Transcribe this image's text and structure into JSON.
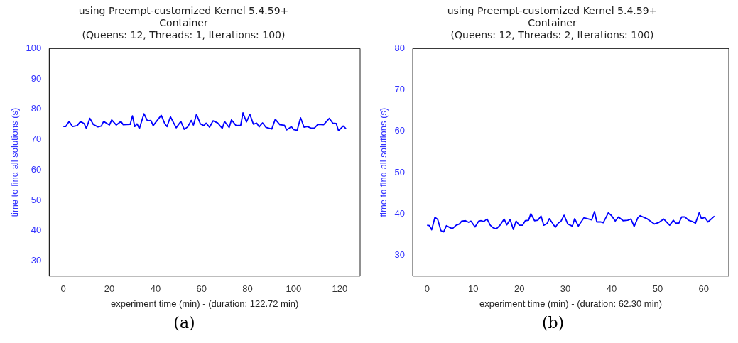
{
  "chart_data": [
    {
      "type": "line",
      "title": "using Preempt-customized Kernel 5.4.59+\nContainer\n(Queens: 12, Threads: 1, Iterations: 100)",
      "xlabel": "experiment time (min) - (duration: 122.72 min)",
      "ylabel": "time to find all solutions (s)",
      "annotations": [
        "(a)"
      ],
      "xlim": [
        -6.14,
        128.86
      ],
      "ylim": [
        25,
        100
      ],
      "xticks": [
        0,
        20,
        40,
        60,
        80,
        100,
        120
      ],
      "yticks": [
        30,
        40,
        50,
        60,
        70,
        80,
        90,
        100
      ],
      "grid": false,
      "legend": false,
      "series": [
        {
          "color": "#0000ff",
          "x": [
            0,
            1,
            2.5,
            4,
            6,
            7.5,
            9,
            10,
            11.5,
            13,
            15,
            16.5,
            17.5,
            20,
            21,
            23,
            25,
            26,
            29,
            30,
            31,
            32,
            33,
            35,
            36.5,
            38,
            39,
            42.5,
            44,
            45,
            46.5,
            49,
            51,
            52.5,
            54,
            55.5,
            56.5,
            57.8,
            59.5,
            61,
            62,
            63.5,
            65,
            67,
            69,
            70,
            72,
            73,
            75,
            77,
            78,
            79.5,
            81,
            82.5,
            84,
            85,
            86.5,
            88,
            90.5,
            92,
            94,
            96,
            97,
            99,
            100,
            101.5,
            103,
            104.5,
            106,
            107.5,
            109,
            110.5,
            113,
            115.5,
            117,
            118.5,
            119.5,
            121.5,
            122.72
          ],
          "values": [
            74.3,
            74.3,
            76,
            74.3,
            74.6,
            76,
            75.3,
            73.7,
            77,
            75,
            74.2,
            74.5,
            76,
            74.8,
            76.5,
            74.8,
            76,
            74.9,
            75,
            77.8,
            74.3,
            75.2,
            73.6,
            78.5,
            76.2,
            76.3,
            74.6,
            78,
            75.3,
            74.3,
            77.5,
            73.9,
            76,
            73.4,
            74.2,
            76.3,
            74.8,
            78.3,
            75.2,
            74.6,
            75.4,
            74.1,
            76.2,
            75.5,
            73.7,
            76,
            74,
            76.5,
            74.6,
            74.7,
            78.8,
            75.8,
            78.3,
            75.1,
            75.4,
            74.2,
            75.5,
            74,
            73.5,
            76.7,
            74.9,
            74.7,
            73.2,
            74.3,
            73.3,
            73,
            77.2,
            74.1,
            74.3,
            73.8,
            73.8,
            75,
            74.9,
            77,
            75.4,
            75.3,
            72.9,
            74.5,
            73.6
          ]
        }
      ]
    },
    {
      "type": "line",
      "title": "using Preempt-customized Kernel 5.4.59+\nContainer\n(Queens: 12, Threads: 2, Iterations: 100)",
      "xlabel": "experiment time (min) - (duration: 62.30 min)",
      "ylabel": "time to find all solutions (s)",
      "annotations": [
        "(b)"
      ],
      "xlim": [
        -3.115,
        65.415
      ],
      "ylim": [
        25,
        80
      ],
      "xticks": [
        0,
        10,
        20,
        30,
        40,
        50,
        60
      ],
      "yticks": [
        30,
        40,
        50,
        60,
        70,
        80
      ],
      "grid": false,
      "legend": false,
      "series": [
        {
          "color": "#0000ff",
          "x": [
            0,
            0.5,
            1,
            1.7,
            2.3,
            3,
            3.6,
            4.2,
            5,
            5.5,
            6.3,
            7,
            7.5,
            8.3,
            9,
            9.5,
            10.4,
            11.2,
            11.7,
            12.3,
            13,
            13.7,
            14.3,
            15,
            15.8,
            16.7,
            17.3,
            18,
            18.7,
            19.3,
            20,
            20.7,
            21.3,
            22,
            22.5,
            23.3,
            24,
            24.7,
            25.3,
            26,
            26.5,
            27.8,
            28.5,
            29,
            29.7,
            30.5,
            31.5,
            32,
            32.8,
            34,
            35,
            35.7,
            36.3,
            36.8,
            37.6,
            38.2,
            39.3,
            40,
            40.8,
            41.5,
            42.5,
            43.5,
            44.2,
            44.9,
            45.7,
            46.2,
            47.8,
            49.3,
            50.3,
            51.3,
            52.6,
            53.4,
            53.9,
            54.6,
            55.2,
            55.9,
            56.7,
            57.5,
            58.2,
            59,
            59.5,
            60.2,
            60.9,
            62.3
          ],
          "values": [
            37.3,
            37.2,
            36.2,
            39.2,
            38.7,
            36,
            35.7,
            37.2,
            36.7,
            36.5,
            37.3,
            37.6,
            38.3,
            38.4,
            38,
            38.3,
            36.9,
            38.3,
            38.4,
            38.2,
            38.8,
            37.3,
            36.7,
            36.4,
            37.3,
            38.8,
            37.4,
            38.7,
            36.3,
            38.3,
            37.3,
            37.3,
            38.4,
            38.5,
            40.1,
            38.4,
            38.5,
            39.5,
            37.3,
            37.7,
            38.9,
            36.8,
            37.9,
            38.2,
            39.7,
            37.6,
            37.1,
            38.9,
            37.1,
            39.1,
            38.8,
            38.6,
            40.6,
            38.1,
            38.1,
            37.9,
            40.3,
            39.6,
            38.3,
            39.3,
            38.4,
            38.5,
            38.8,
            37,
            39.1,
            39.6,
            38.8,
            37.6,
            38,
            38.8,
            37.3,
            38.5,
            37.8,
            37.8,
            39.3,
            39.3,
            38.5,
            38.2,
            37.8,
            40.3,
            38.9,
            39.2,
            38.1,
            39.5
          ]
        }
      ]
    }
  ]
}
